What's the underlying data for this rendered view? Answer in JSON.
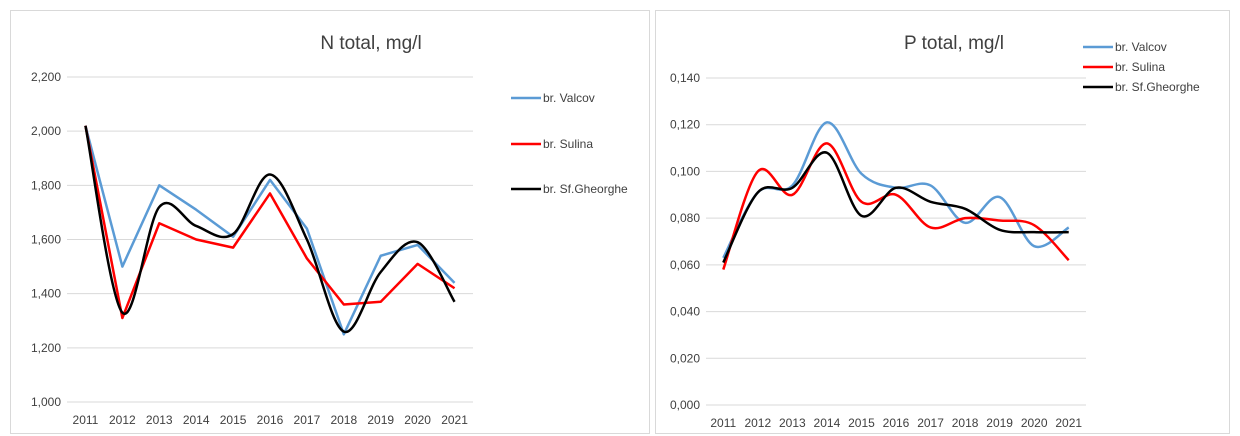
{
  "chart_data": [
    {
      "type": "line",
      "title": "N total, mg/l",
      "categories": [
        "2011",
        "2012",
        "2013",
        "2014",
        "2015",
        "2016",
        "2017",
        "2018",
        "2019",
        "2020",
        "2021"
      ],
      "y_tick_labels": [
        "1,000",
        "1,200",
        "1,400",
        "1,600",
        "1,800",
        "2,000",
        "2,200"
      ],
      "ylim": [
        1.0,
        2.2
      ],
      "grid": true,
      "legend": "right",
      "series": [
        {
          "name": "br. Valcov",
          "color": "#5b9bd5",
          "smooth": false,
          "values": [
            2.02,
            1.5,
            1.8,
            1.71,
            1.61,
            1.82,
            1.64,
            1.25,
            1.54,
            1.58,
            1.44
          ]
        },
        {
          "name": "br. Sulina",
          "color": "#ff0000",
          "smooth": false,
          "values": [
            2.02,
            1.31,
            1.66,
            1.6,
            1.57,
            1.77,
            1.53,
            1.36,
            1.37,
            1.51,
            1.42
          ]
        },
        {
          "name": "br. Sf.Gheorghe",
          "color": "#000000",
          "smooth": true,
          "values": [
            2.02,
            1.33,
            1.72,
            1.65,
            1.62,
            1.84,
            1.6,
            1.26,
            1.48,
            1.59,
            1.37
          ]
        }
      ]
    },
    {
      "type": "line",
      "title": "P total, mg/l",
      "categories": [
        "2011",
        "2012",
        "2013",
        "2014",
        "2015",
        "2016",
        "2017",
        "2018",
        "2019",
        "2020",
        "2021"
      ],
      "y_tick_labels": [
        "0,000",
        "0,020",
        "0,040",
        "0,060",
        "0,080",
        "0,100",
        "0,120",
        "0,140"
      ],
      "ylim": [
        0.0,
        0.14
      ],
      "grid": true,
      "legend": "top-right",
      "series": [
        {
          "name": "br. Valcov",
          "color": "#5b9bd5",
          "smooth": true,
          "values": [
            0.063,
            0.091,
            0.094,
            0.121,
            0.099,
            0.093,
            0.094,
            0.078,
            0.089,
            0.068,
            0.076
          ]
        },
        {
          "name": "br. Sulina",
          "color": "#ff0000",
          "smooth": true,
          "values": [
            0.058,
            0.1,
            0.09,
            0.112,
            0.087,
            0.09,
            0.076,
            0.08,
            0.079,
            0.077,
            0.062
          ]
        },
        {
          "name": "br. Sf.Gheorghe",
          "color": "#000000",
          "smooth": true,
          "values": [
            0.061,
            0.091,
            0.093,
            0.108,
            0.081,
            0.093,
            0.087,
            0.084,
            0.075,
            0.074,
            0.074
          ]
        }
      ]
    }
  ]
}
